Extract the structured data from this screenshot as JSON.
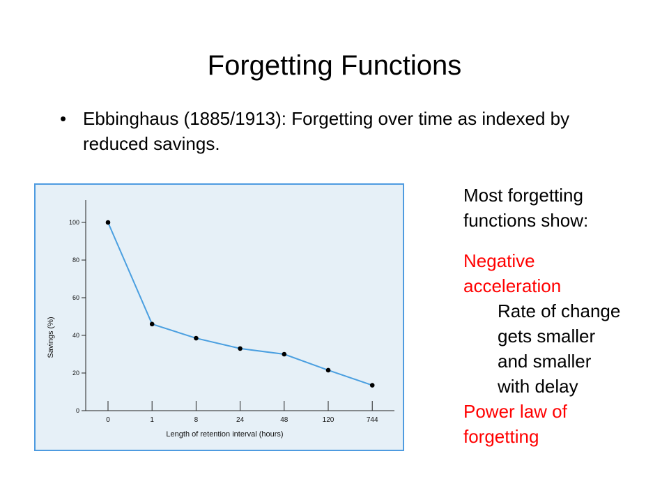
{
  "slide": {
    "title": "Forgetting Functions",
    "bullet_marker": "•",
    "bullet_text": "Ebbinghaus (1885/1913): Forgetting over time as indexed by reduced savings."
  },
  "notes": {
    "intro_line1": "Most forgetting",
    "intro_line2": "functions show:",
    "neg_line1": "Negative",
    "neg_line2": "acceleration",
    "detail_line1": "Rate of change",
    "detail_line2": "gets smaller",
    "detail_line3": "and smaller",
    "detail_line4": "with delay",
    "power_line1": "Power law of",
    "power_line2": "forgetting",
    "accent_color": "#ff0000"
  },
  "chart_data": {
    "type": "line",
    "x": [
      "0",
      "1",
      "8",
      "24",
      "48",
      "120",
      "744"
    ],
    "values": [
      100,
      46,
      38.5,
      33,
      30,
      21.5,
      13.5
    ],
    "xlabel": "Length of retention interval (hours)",
    "ylabel": "Savings (%)",
    "yticks": [
      0,
      20,
      40,
      60,
      80,
      100
    ],
    "ylim": [
      0,
      100
    ],
    "grid": false,
    "line_color": "#4a9fe0",
    "marker_color": "#000000",
    "background_color": "#e6f0f7",
    "border_color": "#4e9be0"
  }
}
